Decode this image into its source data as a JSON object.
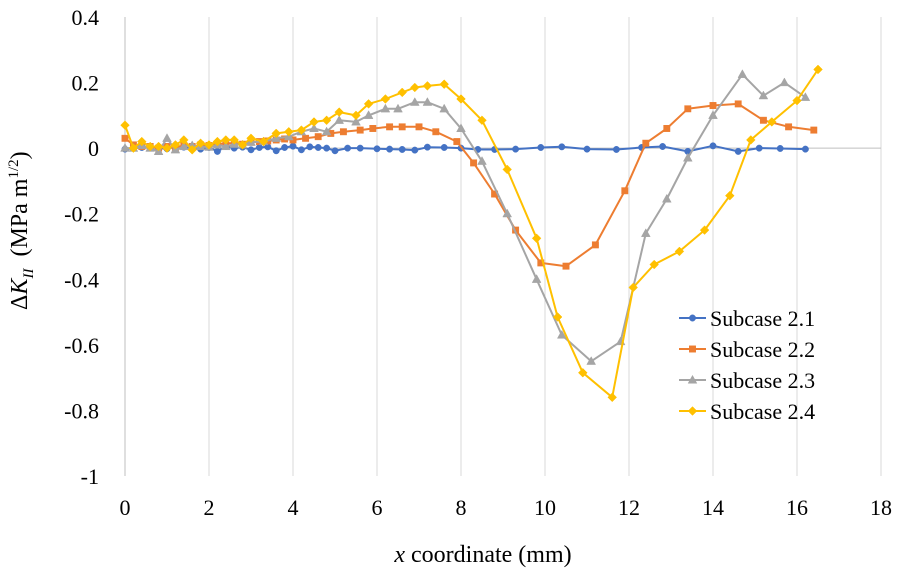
{
  "chart_data": {
    "type": "line",
    "title": "",
    "xlabel": "x coordinate (mm)",
    "xlabel_var": "x",
    "xlabel_rest": " coordinate (mm)",
    "ylabel": "ΔK_II (MPa m^1/2)",
    "ylabel_parts": {
      "delta": "Δ",
      "var": "K",
      "sub": "II",
      "unit_open": "(MPa m",
      "sup": "1/2",
      "unit_close": ")"
    },
    "xlim": [
      0,
      18
    ],
    "ylim": [
      -1,
      0.4
    ],
    "xticks": [
      0,
      2,
      4,
      6,
      8,
      10,
      12,
      14,
      16,
      18
    ],
    "xtick_labels": [
      "0",
      "2",
      "4",
      "6",
      "8",
      "10",
      "12",
      "14",
      "16",
      "18"
    ],
    "yticks": [
      0.4,
      0.2,
      0,
      -0.2,
      -0.4,
      -0.6,
      -0.8,
      -1
    ],
    "ytick_labels": [
      "0.4",
      "0.2",
      "0",
      "-0.2",
      "-0.4",
      "-0.6",
      "-0.8",
      "-1"
    ],
    "grid": "vertical",
    "legend_position": "bottom-right",
    "series": [
      {
        "name": "Subcase 2.1",
        "label": "Subcase 2.1",
        "color": "#4472C4",
        "marker": "circle",
        "x": [
          0,
          0.2,
          0.4,
          0.6,
          0.8,
          1.0,
          1.2,
          1.4,
          1.6,
          1.8,
          2.0,
          2.2,
          2.4,
          2.6,
          2.8,
          3.0,
          3.2,
          3.4,
          3.6,
          3.8,
          4.0,
          4.2,
          4.4,
          4.6,
          4.8,
          5.0,
          5.3,
          5.6,
          6.0,
          6.3,
          6.6,
          6.9,
          7.2,
          7.6,
          8.0,
          8.4,
          8.8,
          9.3,
          9.9,
          10.4,
          11.0,
          11.7,
          12.3,
          12.8,
          13.4,
          14.0,
          14.6,
          15.1,
          15.6,
          16.2
        ],
        "values": [
          -0.003,
          0.0,
          0.002,
          0.005,
          0.0,
          -0.002,
          0.004,
          0.003,
          0.0,
          -0.003,
          0.002,
          -0.01,
          0.005,
          0.0,
          0.003,
          -0.005,
          0.002,
          0.004,
          -0.008,
          0.002,
          0.006,
          -0.005,
          0.004,
          0.002,
          0.0,
          -0.008,
          0.0,
          0.0,
          -0.002,
          -0.003,
          -0.004,
          -0.006,
          0.003,
          0.002,
          0.0,
          -0.004,
          -0.004,
          -0.003,
          0.002,
          0.004,
          -0.003,
          -0.004,
          0.002,
          0.005,
          -0.01,
          0.007,
          -0.01,
          0.0,
          -0.001,
          -0.003
        ]
      },
      {
        "name": "Subcase 2.2",
        "label": "Subcase 2.2",
        "color": "#ED7D31",
        "marker": "square",
        "x": [
          0,
          0.2,
          0.4,
          0.6,
          0.8,
          1.0,
          1.2,
          1.4,
          1.6,
          1.8,
          2.0,
          2.2,
          2.4,
          2.6,
          2.8,
          3.0,
          3.2,
          3.4,
          3.6,
          3.8,
          4.0,
          4.3,
          4.6,
          4.9,
          5.2,
          5.6,
          5.9,
          6.3,
          6.6,
          7.0,
          7.4,
          7.9,
          8.3,
          8.8,
          9.3,
          9.9,
          10.5,
          11.2,
          11.9,
          12.4,
          12.9,
          13.4,
          14.0,
          14.6,
          15.2,
          15.8,
          16.4
        ],
        "values": [
          0.03,
          0.01,
          0.005,
          0.005,
          0.0,
          0.005,
          0.002,
          0.008,
          0.005,
          0.01,
          0.008,
          0.012,
          0.015,
          0.015,
          0.012,
          0.018,
          0.02,
          0.022,
          0.025,
          0.028,
          0.025,
          0.03,
          0.035,
          0.045,
          0.05,
          0.055,
          0.06,
          0.065,
          0.065,
          0.065,
          0.05,
          0.02,
          -0.045,
          -0.14,
          -0.25,
          -0.35,
          -0.36,
          -0.295,
          -0.13,
          0.015,
          0.06,
          0.12,
          0.13,
          0.135,
          0.085,
          0.065,
          0.055
        ]
      },
      {
        "name": "Subcase 2.3",
        "label": "Subcase 2.3",
        "color": "#A5A5A5",
        "marker": "triangle",
        "x": [
          0,
          0.2,
          0.4,
          0.6,
          0.8,
          1.0,
          1.2,
          1.4,
          1.6,
          1.8,
          2.0,
          2.2,
          2.4,
          2.6,
          2.8,
          3.0,
          3.3,
          3.6,
          3.9,
          4.2,
          4.5,
          4.8,
          5.1,
          5.5,
          5.8,
          6.2,
          6.5,
          6.9,
          7.2,
          7.6,
          8.0,
          8.5,
          9.1,
          9.8,
          10.4,
          11.1,
          11.8,
          12.4,
          12.9,
          13.4,
          14.0,
          14.7,
          15.2,
          15.7,
          16.2
        ],
        "values": [
          0.0,
          0.0,
          0.008,
          0.0,
          -0.01,
          0.03,
          -0.005,
          0.005,
          0.008,
          0.005,
          0.003,
          0.01,
          0.005,
          0.012,
          0.01,
          0.018,
          0.02,
          0.03,
          0.035,
          0.05,
          0.06,
          0.05,
          0.085,
          0.08,
          0.1,
          0.12,
          0.12,
          0.14,
          0.14,
          0.12,
          0.06,
          -0.04,
          -0.2,
          -0.4,
          -0.57,
          -0.65,
          -0.59,
          -0.26,
          -0.155,
          -0.03,
          0.1,
          0.225,
          0.16,
          0.2,
          0.155
        ]
      },
      {
        "name": "Subcase 2.4",
        "label": "Subcase 2.4",
        "color": "#FFC000",
        "marker": "diamond",
        "x": [
          0,
          0.2,
          0.4,
          0.6,
          0.8,
          1.0,
          1.2,
          1.4,
          1.6,
          1.8,
          2.0,
          2.2,
          2.4,
          2.6,
          2.8,
          3.0,
          3.3,
          3.6,
          3.9,
          4.2,
          4.5,
          4.8,
          5.1,
          5.5,
          5.8,
          6.2,
          6.6,
          6.9,
          7.2,
          7.6,
          8.0,
          8.5,
          9.1,
          9.8,
          10.3,
          10.9,
          11.6,
          12.1,
          12.6,
          13.2,
          13.8,
          14.4,
          14.9,
          15.4,
          16.0,
          16.5
        ],
        "values": [
          0.07,
          0.0,
          0.02,
          0.005,
          0.005,
          0.0,
          0.01,
          0.025,
          -0.005,
          0.015,
          0.01,
          0.02,
          0.025,
          0.025,
          0.01,
          0.03,
          0.02,
          0.045,
          0.05,
          0.055,
          0.08,
          0.085,
          0.11,
          0.1,
          0.135,
          0.15,
          0.17,
          0.185,
          0.19,
          0.195,
          0.15,
          0.085,
          -0.065,
          -0.275,
          -0.515,
          -0.685,
          -0.76,
          -0.425,
          -0.355,
          -0.315,
          -0.25,
          -0.145,
          0.025,
          0.08,
          0.145,
          0.24
        ]
      }
    ]
  }
}
